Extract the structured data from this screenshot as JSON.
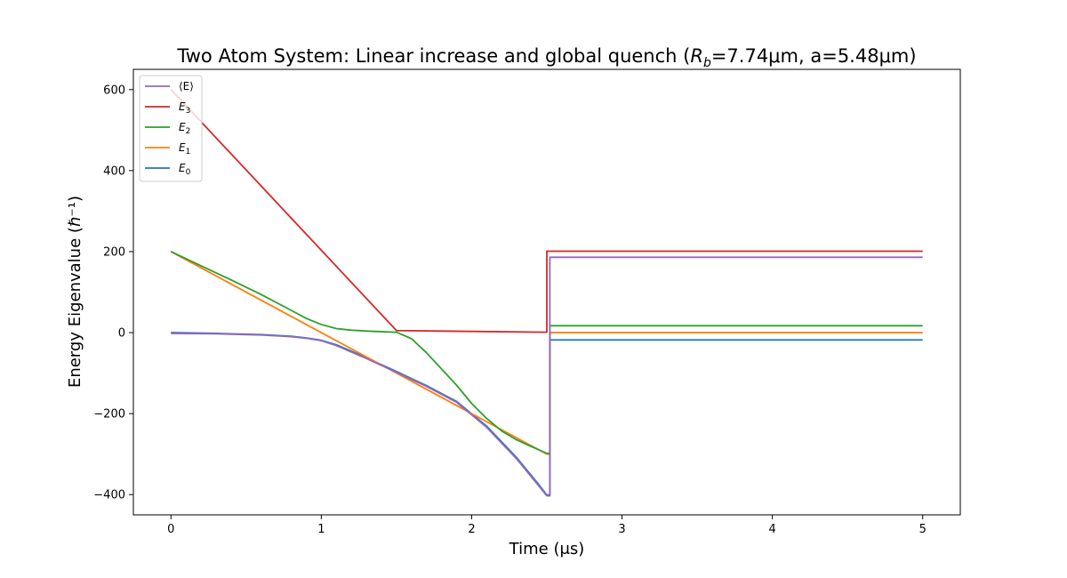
{
  "chart_data": {
    "type": "line",
    "title": "Two Atom System: Linear increase and global quench (R_b=7.74μm, a=5.48μm)",
    "title_parts": {
      "before": "Two Atom System: Linear increase and global quench (",
      "sym": "R",
      "sub": "b",
      "after": "=7.74μm, a=5.48μm)"
    },
    "xlabel": "Time (μs)",
    "ylabel": "Energy Eigenvalue (ℏ⁻¹)",
    "xlim": [
      -0.25,
      5.25
    ],
    "ylim": [
      -450,
      650
    ],
    "xticks": [
      0,
      1,
      2,
      3,
      4,
      5
    ],
    "yticks": [
      -400,
      -200,
      0,
      200,
      400,
      600
    ],
    "ytick_labels": [
      "−400",
      "−200",
      "0",
      "200",
      "400",
      "600"
    ],
    "grid": false,
    "legend_position": "top-left",
    "series": [
      {
        "name": "⟨E⟩",
        "sym": "⟨E⟩",
        "sub": "",
        "color": "#9467bd",
        "points": [
          [
            0,
            -2
          ],
          [
            0.3,
            -3
          ],
          [
            0.6,
            -6
          ],
          [
            0.8,
            -10
          ],
          [
            0.9,
            -14
          ],
          [
            1.0,
            -20
          ],
          [
            1.1,
            -32
          ],
          [
            1.2,
            -48
          ],
          [
            1.3,
            -64
          ],
          [
            1.5,
            -98
          ],
          [
            1.7,
            -133
          ],
          [
            1.9,
            -172
          ],
          [
            2.1,
            -234
          ],
          [
            2.3,
            -312
          ],
          [
            2.45,
            -380
          ],
          [
            2.5,
            -403
          ],
          [
            2.52,
            -403
          ],
          [
            2.52,
            186
          ],
          [
            5.0,
            186
          ]
        ]
      },
      {
        "name": "E3",
        "sym": "E",
        "sub": "3",
        "color": "#d62728",
        "points": [
          [
            0,
            600
          ],
          [
            1.5,
            5
          ],
          [
            2.5,
            1
          ],
          [
            2.5,
            201
          ],
          [
            5.0,
            201
          ]
        ]
      },
      {
        "name": "E2",
        "sym": "E",
        "sub": "2",
        "color": "#2ca02c",
        "points": [
          [
            0,
            200
          ],
          [
            0.2,
            165
          ],
          [
            0.4,
            130
          ],
          [
            0.6,
            94
          ],
          [
            0.8,
            55
          ],
          [
            0.9,
            35
          ],
          [
            1.0,
            20
          ],
          [
            1.1,
            10
          ],
          [
            1.2,
            6
          ],
          [
            1.35,
            3
          ],
          [
            1.5,
            1
          ],
          [
            1.6,
            -15
          ],
          [
            1.7,
            -50
          ],
          [
            1.8,
            -90
          ],
          [
            1.9,
            -130
          ],
          [
            2.0,
            -175
          ],
          [
            2.1,
            -212
          ],
          [
            2.2,
            -243
          ],
          [
            2.3,
            -265
          ],
          [
            2.4,
            -282
          ],
          [
            2.5,
            -298
          ],
          [
            2.52,
            -298
          ],
          [
            2.52,
            17
          ],
          [
            5.0,
            17
          ]
        ]
      },
      {
        "name": "E1",
        "sym": "E",
        "sub": "1",
        "color": "#ff7f0e",
        "points": [
          [
            0,
            200
          ],
          [
            1.0,
            0
          ],
          [
            1.5,
            -100
          ],
          [
            2.0,
            -200
          ],
          [
            2.5,
            -300
          ],
          [
            2.52,
            -300
          ],
          [
            2.52,
            0
          ],
          [
            5.0,
            0
          ]
        ]
      },
      {
        "name": "E0",
        "sym": "E",
        "sub": "0",
        "color": "#1f77b4",
        "points": [
          [
            0,
            0
          ],
          [
            0.3,
            -2
          ],
          [
            0.6,
            -5
          ],
          [
            0.8,
            -9
          ],
          [
            0.9,
            -13
          ],
          [
            1.0,
            -19
          ],
          [
            1.1,
            -30
          ],
          [
            1.2,
            -46
          ],
          [
            1.3,
            -62
          ],
          [
            1.5,
            -96
          ],
          [
            1.7,
            -131
          ],
          [
            1.9,
            -170
          ],
          [
            2.1,
            -231
          ],
          [
            2.3,
            -309
          ],
          [
            2.45,
            -377
          ],
          [
            2.5,
            -401
          ],
          [
            2.52,
            -401
          ],
          [
            2.52,
            -18
          ],
          [
            5.0,
            -18
          ]
        ]
      }
    ]
  }
}
